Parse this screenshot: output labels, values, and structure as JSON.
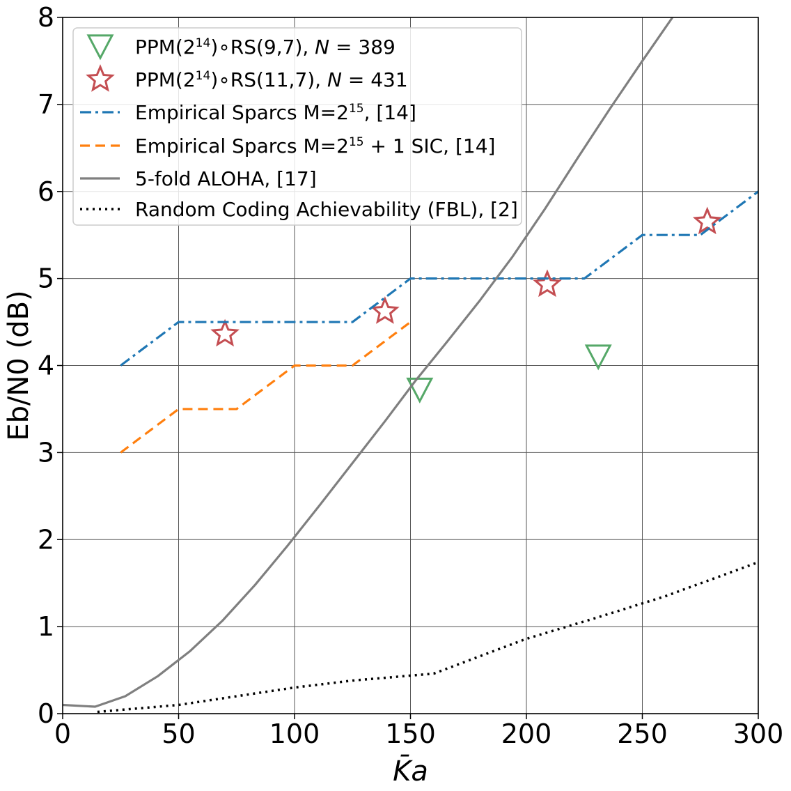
{
  "chart_data": {
    "type": "line",
    "title": "",
    "xlabel": "K̄a",
    "ylabel": "Eb/N0 (dB)",
    "xlim": [
      0,
      300
    ],
    "ylim": [
      0,
      8
    ],
    "xticks": [
      0,
      50,
      100,
      150,
      200,
      250,
      300
    ],
    "yticks": [
      0,
      1,
      2,
      3,
      4,
      5,
      6,
      7,
      8
    ],
    "grid": true,
    "legend_position": "top-left",
    "series": [
      {
        "name": "PPM(2^14)∘RS(9,7), N = 389",
        "legend": {
          "pre": "PPM(2",
          "sup": "14",
          "post": ")∘RS(9,7), ",
          "ital": "N",
          "tail": " = 389"
        },
        "kind": "marker",
        "marker": "triangle-down",
        "color": "#55a868",
        "x": [
          154,
          231
        ],
        "y": [
          3.72,
          4.1
        ]
      },
      {
        "name": "PPM(2^14)∘RS(11,7), N = 431",
        "legend": {
          "pre": "PPM(2",
          "sup": "14",
          "post": ")∘RS(11,7), ",
          "ital": "N",
          "tail": " = 431"
        },
        "kind": "marker",
        "marker": "star",
        "color": "#c44e52",
        "x": [
          70,
          139,
          209,
          278
        ],
        "y": [
          4.36,
          4.62,
          4.93,
          5.65
        ]
      },
      {
        "name": "Empirical Sparcs M=2^15, [14]",
        "legend": {
          "pre": "Empirical Sparcs M=2",
          "sup": "15",
          "post": ", [14]"
        },
        "kind": "line",
        "dash": "dashdot",
        "color": "#1f77b4",
        "x": [
          25,
          50,
          75,
          100,
          125,
          150,
          175,
          200,
          225,
          250,
          275,
          300
        ],
        "y": [
          4.0,
          4.5,
          4.5,
          4.5,
          4.5,
          5.0,
          5.0,
          5.0,
          5.0,
          5.5,
          5.5,
          6.0
        ]
      },
      {
        "name": "Empirical Sparcs M=2^15 + 1 SIC, [14]",
        "legend": {
          "pre": "Empirical Sparcs M=2",
          "sup": "15",
          "post": " + 1 SIC, [14]"
        },
        "kind": "line",
        "dash": "dashed",
        "color": "#ff7f0e",
        "x": [
          25,
          50,
          75,
          100,
          125,
          150
        ],
        "y": [
          3.0,
          3.5,
          3.5,
          4.0,
          4.0,
          4.5
        ]
      },
      {
        "name": "5-fold ALOHA, [17]",
        "legend": {
          "pre": "5-fold ALOHA, [17]"
        },
        "kind": "line",
        "dash": "solid",
        "color": "#7f7f7f",
        "x": [
          0,
          14,
          27,
          41,
          55,
          69,
          83,
          97,
          111,
          125,
          139,
          152,
          166,
          180,
          194,
          208,
          222,
          236,
          250,
          263
        ],
        "y": [
          0.1,
          0.08,
          0.2,
          0.43,
          0.72,
          1.07,
          1.48,
          1.93,
          2.4,
          2.88,
          3.36,
          3.82,
          4.28,
          4.75,
          5.25,
          5.8,
          6.38,
          6.95,
          7.5,
          8.0
        ]
      },
      {
        "name": "Random Coding Achievability (FBL), [2]",
        "legend": {
          "pre": "Random Coding Achievability (FBL), [2]"
        },
        "kind": "line",
        "dash": "dotted",
        "color": "#000000",
        "x": [
          15,
          50,
          75,
          100,
          125,
          160,
          180,
          200,
          230,
          260,
          300
        ],
        "y": [
          0.02,
          0.1,
          0.2,
          0.3,
          0.38,
          0.46,
          0.66,
          0.86,
          1.1,
          1.35,
          1.74
        ]
      }
    ]
  }
}
